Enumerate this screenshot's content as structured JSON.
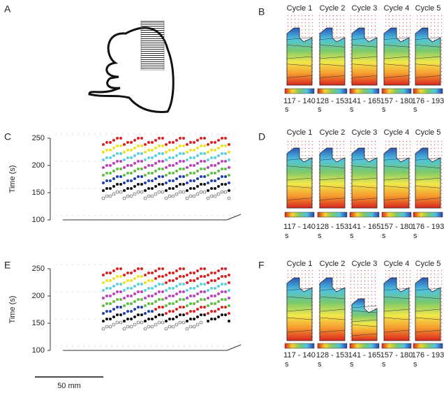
{
  "panels": {
    "A": {
      "label": "A"
    },
    "B": {
      "label": "B",
      "cycles": [
        "Cycle 1",
        "Cycle 2",
        "Cycle 3",
        "Cycle 4",
        "Cycle 5"
      ],
      "ranges": [
        "117 - 140",
        "128 - 153",
        "141 - 165",
        "157 - 180",
        "176 - 193"
      ],
      "unit": "s"
    },
    "C": {
      "label": "C",
      "y_label": "Time (s)",
      "yticks": [
        250,
        200,
        150,
        100
      ]
    },
    "D": {
      "label": "D",
      "cycles": [
        "Cycle 1",
        "Cycle 2",
        "Cycle 3",
        "Cycle 4",
        "Cycle 5"
      ],
      "ranges": [
        "117 - 140",
        "128 - 153",
        "141 - 165",
        "157 - 180",
        "176 - 193"
      ],
      "unit": "s"
    },
    "E": {
      "label": "E",
      "y_label": "Time (s)",
      "yticks": [
        250,
        200,
        150,
        100
      ]
    },
    "F": {
      "label": "F",
      "cycles": [
        "Cycle 1",
        "Cycle 2",
        "Cycle 3",
        "Cycle 4",
        "Cycle 5"
      ],
      "ranges": [
        "117 - 140",
        "128 - 153",
        "141 - 165",
        "157 - 180",
        "176 - 193"
      ],
      "unit": "s"
    }
  },
  "scale_bar": "50 mm"
}
